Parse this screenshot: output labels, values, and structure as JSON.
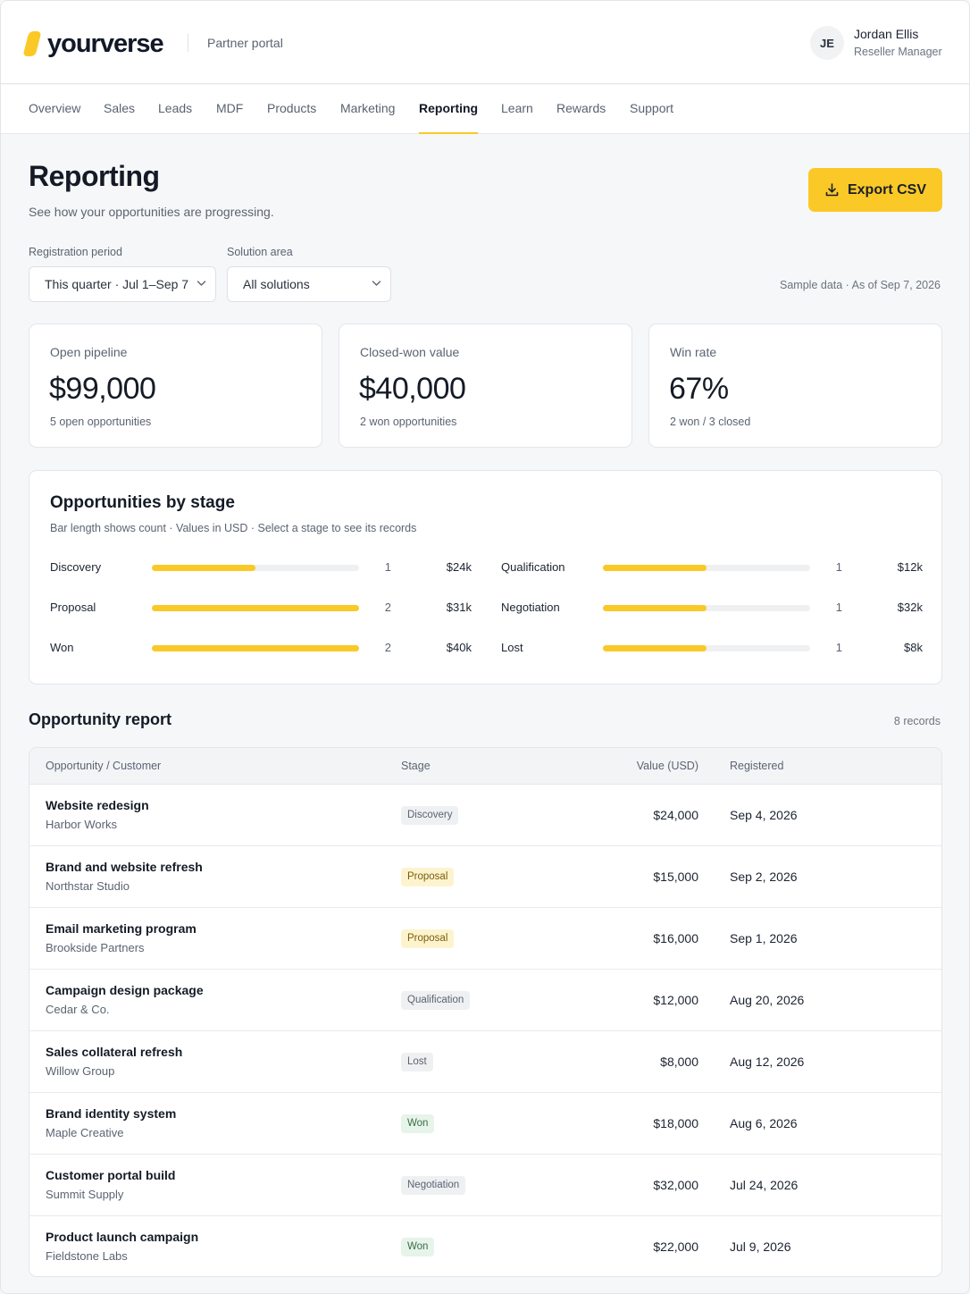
{
  "header": {
    "logo_text": "yourverse",
    "portal_label": "Partner portal",
    "user": {
      "initials": "JE",
      "name": "Jordan Ellis",
      "role": "Reseller Manager"
    }
  },
  "nav": {
    "items": [
      "Overview",
      "Sales",
      "Leads",
      "MDF",
      "Products",
      "Marketing",
      "Reporting",
      "Learn",
      "Rewards",
      "Support"
    ],
    "active": "Reporting"
  },
  "page": {
    "title": "Reporting",
    "subtitle": "See how your opportunities are progressing.",
    "export_label": "Export CSV"
  },
  "filters": {
    "period_label": "Registration period",
    "period_value": "This quarter · Jul 1–Sep 7",
    "solution_label": "Solution area",
    "solution_value": "All solutions",
    "sample_note": "Sample data · As of Sep 7, 2026"
  },
  "kpis": [
    {
      "label": "Open pipeline",
      "value": "$99,000",
      "note": "5 open opportunities"
    },
    {
      "label": "Closed-won value",
      "value": "$40,000",
      "note": "2 won opportunities"
    },
    {
      "label": "Win rate",
      "value": "67%",
      "note": "2 won / 3 closed"
    }
  ],
  "stages": {
    "title": "Opportunities by stage",
    "subtitle": "Bar length shows count · Values in USD · Select a stage to see its records",
    "max_count": 2,
    "items": [
      {
        "name": "Discovery",
        "count": 1,
        "value": "$24k"
      },
      {
        "name": "Qualification",
        "count": 1,
        "value": "$12k"
      },
      {
        "name": "Proposal",
        "count": 2,
        "value": "$31k"
      },
      {
        "name": "Negotiation",
        "count": 1,
        "value": "$32k"
      },
      {
        "name": "Won",
        "count": 2,
        "value": "$40k"
      },
      {
        "name": "Lost",
        "count": 1,
        "value": "$8k"
      }
    ]
  },
  "report": {
    "title": "Opportunity report",
    "count_label": "8 records",
    "columns": [
      "Opportunity / Customer",
      "Stage",
      "Value (USD)",
      "Registered"
    ],
    "rows": [
      {
        "name": "Website redesign",
        "customer": "Harbor Works",
        "stage": "Discovery",
        "value": "$24,000",
        "date": "Sep 4, 2026"
      },
      {
        "name": "Brand and website refresh",
        "customer": "Northstar Studio",
        "stage": "Proposal",
        "value": "$15,000",
        "date": "Sep 2, 2026"
      },
      {
        "name": "Email marketing program",
        "customer": "Brookside Partners",
        "stage": "Proposal",
        "value": "$16,000",
        "date": "Sep 1, 2026"
      },
      {
        "name": "Campaign design package",
        "customer": "Cedar & Co.",
        "stage": "Qualification",
        "value": "$12,000",
        "date": "Aug 20, 2026"
      },
      {
        "name": "Sales collateral refresh",
        "customer": "Willow Group",
        "stage": "Lost",
        "value": "$8,000",
        "date": "Aug 12, 2026"
      },
      {
        "name": "Brand identity system",
        "customer": "Maple Creative",
        "stage": "Won",
        "value": "$18,000",
        "date": "Aug 6, 2026"
      },
      {
        "name": "Customer portal build",
        "customer": "Summit Supply",
        "stage": "Negotiation",
        "value": "$32,000",
        "date": "Jul 24, 2026"
      },
      {
        "name": "Product launch campaign",
        "customer": "Fieldstone Labs",
        "stage": "Won",
        "value": "$22,000",
        "date": "Jul 9, 2026"
      }
    ]
  },
  "colors": {
    "accent": "#fac928",
    "text": "#141b26",
    "muted": "#5b6472"
  }
}
